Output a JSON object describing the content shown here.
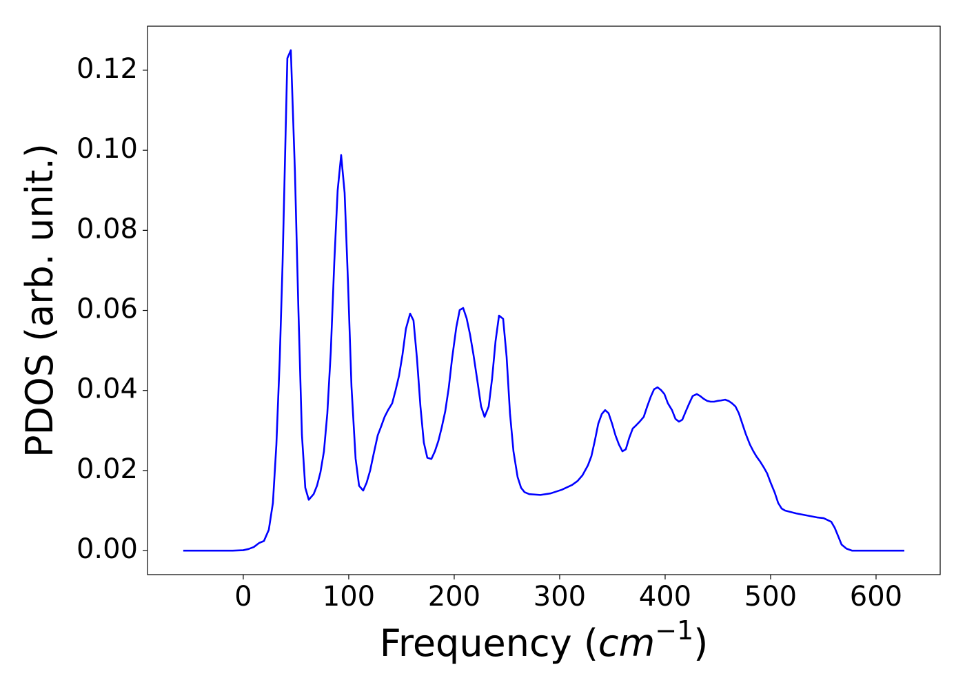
{
  "chart_data": {
    "type": "line",
    "xlabel": [
      "Frequency (",
      "cm",
      "−1",
      ")"
    ],
    "ylabel": "PDOS (arb. unit.)",
    "xlim": [
      -90.8,
      660.8
    ],
    "ylim": [
      -0.006,
      0.131
    ],
    "xticks": [
      0,
      100,
      200,
      300,
      400,
      500,
      600
    ],
    "yticks": [
      {
        "value": 0,
        "label": "0.00"
      },
      {
        "value": 0.02,
        "label": "0.02"
      },
      {
        "value": 0.04,
        "label": "0.04"
      },
      {
        "value": 0.06,
        "label": "0.06"
      },
      {
        "value": 0.08,
        "label": "0.08"
      },
      {
        "value": 0.1,
        "label": "0.10"
      },
      {
        "value": 0.12,
        "label": "0.12"
      }
    ],
    "x": [
      -56.9,
      -10,
      0,
      5,
      10,
      15,
      19.6,
      24.2,
      28.1,
      31.4,
      34.6,
      37.3,
      41.8,
      45.1,
      49.0,
      52.3,
      55.6,
      58.8,
      62.1,
      66.7,
      69.9,
      73.2,
      76.5,
      79.7,
      83.0,
      86.3,
      89.5,
      92.8,
      96.1,
      99.3,
      102.6,
      106.5,
      109.8,
      113.7,
      117.0,
      120.3,
      123.5,
      127.5,
      130.7,
      134.0,
      137.3,
      141.2,
      144.4,
      147.7,
      151.0,
      154.2,
      158.2,
      161.4,
      164.7,
      168.0,
      171.2,
      174.5,
      178.4,
      181.7,
      185.0,
      188.2,
      191.5,
      194.8,
      198.0,
      202.0,
      205.2,
      208.5,
      211.8,
      215.0,
      218.3,
      222.2,
      225.5,
      228.8,
      232.7,
      235.9,
      239.2,
      242.5,
      246.4,
      249.7,
      252.9,
      256.2,
      260.1,
      263.4,
      266.7,
      271.2,
      281.7,
      291.5,
      302.0,
      311.8,
      317.0,
      321.6,
      326.8,
      330.1,
      333.3,
      336.6,
      339.9,
      343.1,
      346.4,
      349.7,
      352.9,
      356.2,
      359.5,
      362.7,
      366.0,
      369.3,
      372.5,
      375.8,
      379.7,
      383.0,
      386.3,
      389.5,
      392.8,
      396.1,
      399.3,
      402.6,
      406.5,
      409.8,
      413.1,
      416.3,
      419.6,
      422.9,
      426.1,
      430.1,
      433.3,
      436.6,
      439.9,
      443.1,
      446.4,
      449.7,
      452.9,
      456.9,
      460.1,
      463.4,
      466.7,
      469.9,
      473.2,
      476.5,
      480.4,
      483.7,
      486.9,
      490.2,
      493.5,
      496.7,
      500.0,
      503.9,
      507.2,
      510.5,
      513.7,
      524.2,
      534.0,
      543.8,
      550.3,
      557.5,
      560.8,
      564.1,
      567.3,
      571.9,
      577.1,
      586.3,
      626.8
    ],
    "series": [
      {
        "color": "#0000ff",
        "values": [
          0,
          0,
          0.0001,
          0.0004,
          0.0009,
          0.0019,
          0.0024,
          0.0052,
          0.0119,
          0.0265,
          0.048,
          0.072,
          0.123,
          0.125,
          0.0945,
          0.06,
          0.029,
          0.0157,
          0.0127,
          0.0141,
          0.0162,
          0.0196,
          0.0248,
          0.0343,
          0.0498,
          0.072,
          0.09,
          0.0988,
          0.0894,
          0.067,
          0.041,
          0.023,
          0.0162,
          0.015,
          0.017,
          0.02,
          0.024,
          0.0288,
          0.031,
          0.0334,
          0.0351,
          0.0368,
          0.04,
          0.0437,
          0.049,
          0.0554,
          0.0592,
          0.0575,
          0.048,
          0.036,
          0.027,
          0.0232,
          0.0229,
          0.0248,
          0.0274,
          0.0308,
          0.0348,
          0.0406,
          0.048,
          0.0558,
          0.0601,
          0.0606,
          0.058,
          0.054,
          0.0489,
          0.042,
          0.036,
          0.0334,
          0.036,
          0.0429,
          0.0523,
          0.0587,
          0.0579,
          0.0484,
          0.0343,
          0.0248,
          0.0184,
          0.0157,
          0.0146,
          0.0141,
          0.0139,
          0.0143,
          0.0152,
          0.0164,
          0.0174,
          0.0188,
          0.0213,
          0.0236,
          0.0274,
          0.0317,
          0.0341,
          0.0351,
          0.0343,
          0.0317,
          0.0288,
          0.0265,
          0.0248,
          0.0253,
          0.0282,
          0.0305,
          0.0313,
          0.0322,
          0.0334,
          0.036,
          0.0384,
          0.0403,
          0.0408,
          0.0401,
          0.0391,
          0.0368,
          0.0351,
          0.0329,
          0.0322,
          0.0327,
          0.0348,
          0.0368,
          0.0386,
          0.0391,
          0.0386,
          0.0379,
          0.0374,
          0.0372,
          0.0372,
          0.0374,
          0.0375,
          0.0377,
          0.0374,
          0.0368,
          0.036,
          0.0343,
          0.0317,
          0.0291,
          0.0265,
          0.0248,
          0.0234,
          0.0222,
          0.0208,
          0.0193,
          0.017,
          0.0145,
          0.0119,
          0.0105,
          0.01,
          0.0093,
          0.0088,
          0.0083,
          0.0081,
          0.0072,
          0.0057,
          0.0036,
          0.0015,
          0.0005,
          0,
          0,
          0
        ]
      }
    ]
  }
}
